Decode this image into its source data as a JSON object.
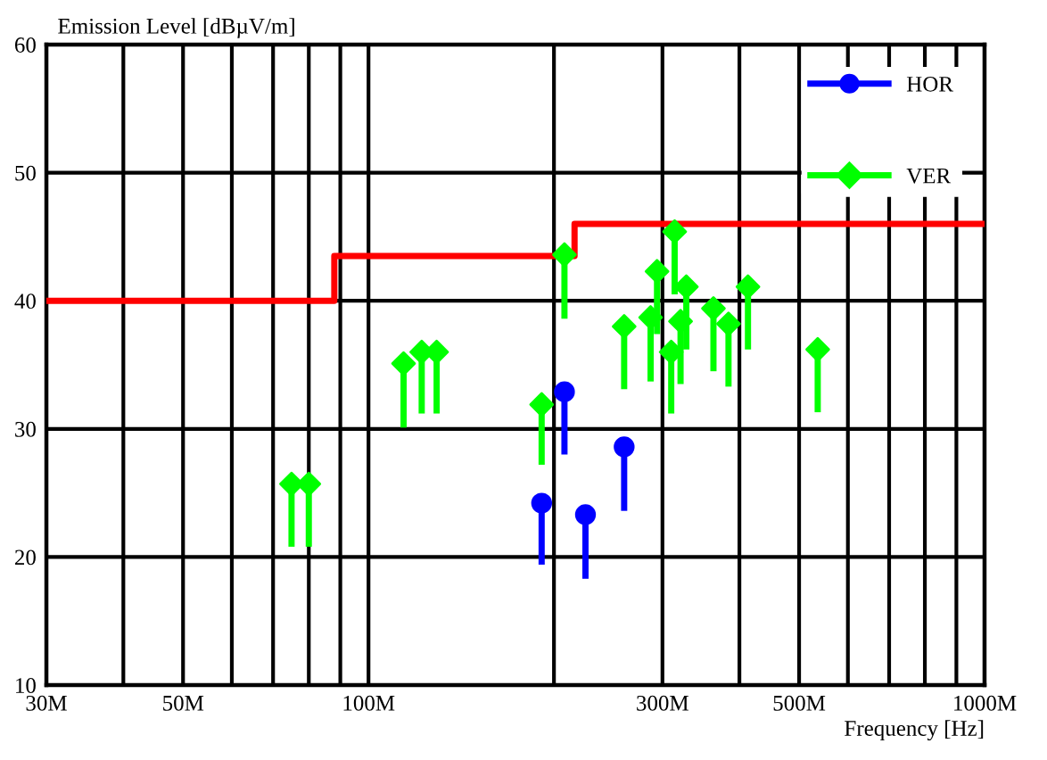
{
  "chart_data": {
    "type": "scatter",
    "xlabel": "Frequency [Hz]",
    "ylabel": "Emission Level [dBµV/m]",
    "log": "x",
    "xlim": [
      30,
      1000
    ],
    "ylim": [
      10,
      60
    ],
    "xticks": [
      {
        "value": 30,
        "label": "30M"
      },
      {
        "value": 40,
        "label": null
      },
      {
        "value": 50,
        "label": "50M"
      },
      {
        "value": 60,
        "label": null
      },
      {
        "value": 70,
        "label": null
      },
      {
        "value": 80,
        "label": null
      },
      {
        "value": 90,
        "label": null
      },
      {
        "value": 100,
        "label": "100M"
      },
      {
        "value": 200,
        "label": null
      },
      {
        "value": 300,
        "label": "300M"
      },
      {
        "value": 400,
        "label": null
      },
      {
        "value": 500,
        "label": "500M"
      },
      {
        "value": 600,
        "label": null
      },
      {
        "value": 700,
        "label": null
      },
      {
        "value": 800,
        "label": null
      },
      {
        "value": 900,
        "label": null
      },
      {
        "value": 1000,
        "label": "1000M"
      }
    ],
    "yticks": [
      10,
      20,
      30,
      40,
      50,
      60
    ],
    "grid": true,
    "legend": "top right",
    "series": [
      {
        "type": "step",
        "color": "#ff0000",
        "x": [
          30,
          88,
          216,
          1000
        ],
        "values": [
          40,
          43.5,
          46,
          46
        ]
      },
      {
        "name": "HOR",
        "marker": "circle",
        "color": "#0000ff",
        "x": [
          191,
          208,
          225,
          260
        ],
        "values": [
          24.2,
          32.9,
          23.3,
          28.6
        ],
        "errors": [
          [
            19.4,
            24.2
          ],
          [
            28.0,
            32.9
          ],
          [
            18.3,
            23.3
          ],
          [
            23.6,
            28.6
          ]
        ]
      },
      {
        "name": "VER",
        "marker": "diamond",
        "color": "#00ff00",
        "x": [
          75,
          80,
          114,
          122,
          129,
          191,
          208,
          260,
          287,
          294,
          310,
          314,
          321,
          328,
          363,
          384,
          413,
          536
        ],
        "values": [
          25.7,
          25.7,
          35.1,
          36.0,
          36.0,
          31.9,
          43.6,
          38.0,
          38.7,
          42.3,
          36.0,
          45.4,
          38.4,
          41.1,
          39.4,
          38.2,
          41.1,
          36.2
        ],
        "errors": [
          [
            20.8,
            25.7
          ],
          [
            20.8,
            25.7
          ],
          [
            30.1,
            35.1
          ],
          [
            31.2,
            36.0
          ],
          [
            31.2,
            36.0
          ],
          [
            27.2,
            31.9
          ],
          [
            38.6,
            43.6
          ],
          [
            33.1,
            38.0
          ],
          [
            33.7,
            38.7
          ],
          [
            37.4,
            42.3
          ],
          [
            31.2,
            36.0
          ],
          [
            40.5,
            45.4
          ],
          [
            33.5,
            38.4
          ],
          [
            36.2,
            41.1
          ],
          [
            34.5,
            39.4
          ],
          [
            33.3,
            38.2
          ],
          [
            36.2,
            41.1
          ],
          [
            31.3,
            36.2
          ]
        ]
      }
    ]
  }
}
